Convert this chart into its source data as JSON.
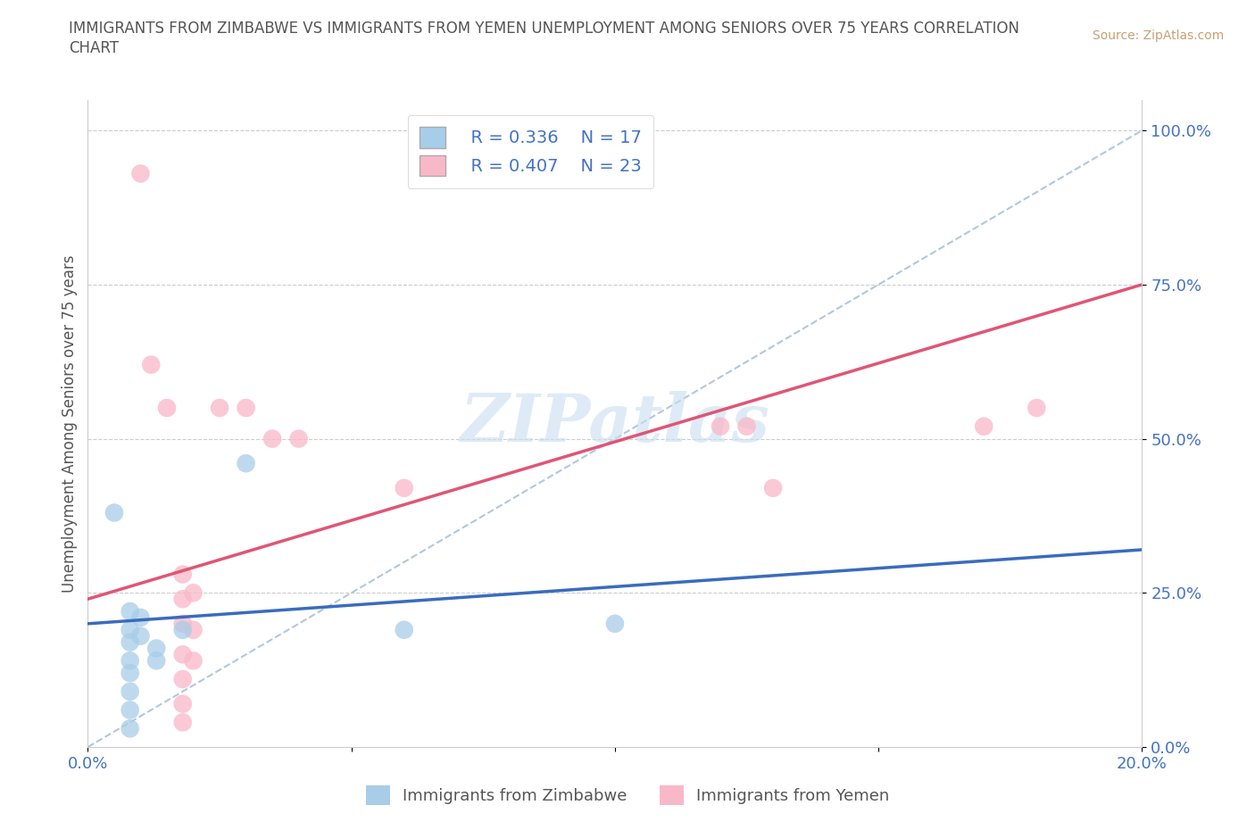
{
  "title_line1": "IMMIGRANTS FROM ZIMBABWE VS IMMIGRANTS FROM YEMEN UNEMPLOYMENT AMONG SENIORS OVER 75 YEARS CORRELATION",
  "title_line2": "CHART",
  "source": "Source: ZipAtlas.com",
  "ylabel": "Unemployment Among Seniors over 75 years",
  "watermark": "ZIPatlas",
  "legend_r_blue": "R = 0.336",
  "legend_n_blue": "N = 17",
  "legend_r_pink": "R = 0.407",
  "legend_n_pink": "N = 23",
  "legend_label_blue": "Immigrants from Zimbabwe",
  "legend_label_pink": "Immigrants from Yemen",
  "xlim": [
    0.0,
    0.2
  ],
  "ylim": [
    0.0,
    1.05
  ],
  "yticks": [
    0.0,
    0.25,
    0.5,
    0.75,
    1.0
  ],
  "ytick_labels": [
    "0.0%",
    "25.0%",
    "50.0%",
    "75.0%",
    "100.0%"
  ],
  "xticks": [
    0.0,
    0.05,
    0.1,
    0.15,
    0.2
  ],
  "xtick_labels": [
    "0.0%",
    "",
    "",
    "",
    "20.0%"
  ],
  "color_blue": "#a8cde8",
  "color_pink": "#f9b8c8",
  "line_blue": "#3a6bbf",
  "line_pink": "#e05575",
  "line_dashed_color": "#a0b8d8",
  "background": "#ffffff",
  "title_color": "#555555",
  "blue_dots": [
    [
      0.005,
      0.38
    ],
    [
      0.008,
      0.22
    ],
    [
      0.008,
      0.19
    ],
    [
      0.008,
      0.17
    ],
    [
      0.008,
      0.14
    ],
    [
      0.008,
      0.12
    ],
    [
      0.008,
      0.09
    ],
    [
      0.008,
      0.06
    ],
    [
      0.008,
      0.03
    ],
    [
      0.01,
      0.21
    ],
    [
      0.01,
      0.18
    ],
    [
      0.013,
      0.16
    ],
    [
      0.013,
      0.14
    ],
    [
      0.018,
      0.19
    ],
    [
      0.03,
      0.46
    ],
    [
      0.06,
      0.19
    ],
    [
      0.1,
      0.2
    ]
  ],
  "pink_dots": [
    [
      0.01,
      0.93
    ],
    [
      0.012,
      0.62
    ],
    [
      0.015,
      0.55
    ],
    [
      0.018,
      0.28
    ],
    [
      0.018,
      0.24
    ],
    [
      0.018,
      0.2
    ],
    [
      0.018,
      0.15
    ],
    [
      0.018,
      0.11
    ],
    [
      0.018,
      0.07
    ],
    [
      0.018,
      0.04
    ],
    [
      0.02,
      0.25
    ],
    [
      0.02,
      0.19
    ],
    [
      0.02,
      0.14
    ],
    [
      0.025,
      0.55
    ],
    [
      0.03,
      0.55
    ],
    [
      0.035,
      0.5
    ],
    [
      0.04,
      0.5
    ],
    [
      0.06,
      0.42
    ],
    [
      0.12,
      0.52
    ],
    [
      0.125,
      0.52
    ],
    [
      0.13,
      0.42
    ],
    [
      0.17,
      0.52
    ],
    [
      0.18,
      0.55
    ]
  ],
  "blue_trendline_x": [
    0.0,
    0.2
  ],
  "blue_trendline_y": [
    0.2,
    0.32
  ],
  "pink_trendline_x": [
    0.0,
    0.2
  ],
  "pink_trendline_y": [
    0.24,
    0.75
  ],
  "dashed_line_x": [
    0.0,
    0.2
  ],
  "dashed_line_y": [
    0.0,
    1.0
  ]
}
